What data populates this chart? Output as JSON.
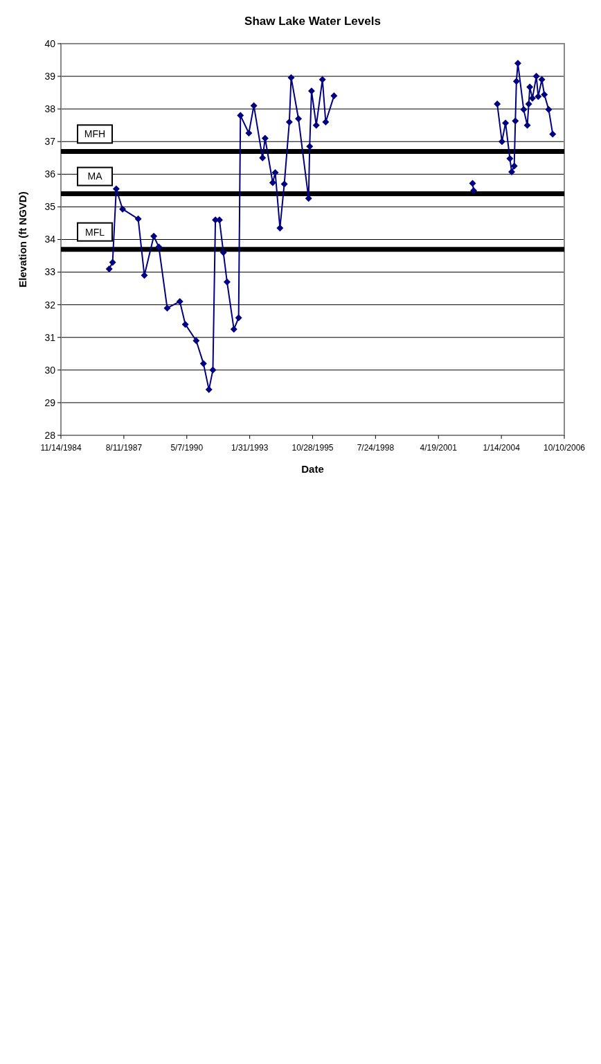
{
  "chart_data": {
    "type": "line",
    "title": "Shaw Lake Water Levels",
    "xlabel": "Date",
    "ylabel": "Elevation (ft NGVD)",
    "x": [
      "1986-12-21",
      "1987-02-13",
      "1987-04-12",
      "1987-07-22",
      "1988-03-26",
      "1988-07-02",
      "1988-11-29",
      "1989-02-17",
      "1989-06-30",
      "1990-01-17",
      "1990-04-14",
      "1990-10-04",
      "1991-01-27",
      "1991-04-24",
      "1991-06-26",
      "1991-08-05",
      "1991-10-08",
      "1991-12-10",
      "1992-02-06",
      "1992-05-25",
      "1992-08-08",
      "1992-09-06",
      "1993-01-17",
      "1993-04-07",
      "1993-08-23",
      "1993-10-03",
      "1994-02-01",
      "1994-03-13",
      "1994-05-27",
      "1994-08-04",
      "1994-10-23",
      "1994-11-21",
      "1995-03-17",
      "1995-08-25",
      "1995-09-11",
      "1995-10-11",
      "1995-12-25",
      "1996-04-01",
      "1996-05-23",
      "1996-10-02",
      "1999-06-01",
      "2002-10-13",
      "2002-10-30",
      "2003-06-01",
      "2003-11-09",
      "2004-01-23",
      "2004-03-20",
      "2004-05-28",
      "2004-06-26",
      "2004-08-05",
      "2004-08-23",
      "2004-09-09",
      "2004-10-02",
      "2005-01-02",
      "2005-03-01",
      "2005-03-24",
      "2005-04-10",
      "2005-05-21",
      "2005-07-23",
      "2005-08-21",
      "2005-10-18",
      "2005-11-27",
      "2006-02-04",
      "2006-04-09"
    ],
    "series": [
      {
        "color": "#000080",
        "values": [
          33.1,
          33.3,
          35.55,
          34.93,
          34.63,
          32.9,
          34.1,
          33.77,
          31.9,
          32.1,
          31.4,
          30.9,
          30.2,
          29.4,
          30.0,
          34.6,
          34.6,
          33.6,
          32.7,
          31.25,
          31.6,
          37.8,
          37.26,
          38.1,
          36.5,
          37.1,
          35.74,
          36.05,
          34.35,
          35.7,
          37.6,
          38.96,
          37.7,
          35.26,
          36.85,
          38.55,
          37.5,
          38.9,
          37.6,
          38.4,
          null,
          35.72,
          35.5,
          null,
          38.15,
          37.0,
          37.57,
          36.48,
          36.07,
          36.25,
          37.63,
          38.85,
          39.4,
          37.98,
          37.5,
          38.15,
          38.67,
          38.33,
          39.0,
          38.38,
          38.9,
          38.44,
          37.98,
          37.23
        ]
      }
    ],
    "marker": "diamond",
    "grid": "y",
    "xlim": [
      "1984-11-14",
      "2006-10-10"
    ],
    "xticks": [
      {
        "value": "1984-11-14",
        "label": "11/14/1984"
      },
      {
        "value": "1987-08-11",
        "label": "8/11/1987"
      },
      {
        "value": "1990-05-07",
        "label": "5/7/1990"
      },
      {
        "value": "1993-01-31",
        "label": "1/31/1993"
      },
      {
        "value": "1995-10-28",
        "label": "10/28/1995"
      },
      {
        "value": "1998-07-24",
        "label": "7/24/1998"
      },
      {
        "value": "2001-04-19",
        "label": "4/19/2001"
      },
      {
        "value": "2004-01-14",
        "label": "1/14/2004"
      },
      {
        "value": "2006-10-10",
        "label": "10/10/2006"
      }
    ],
    "ylim": [
      28,
      40
    ],
    "yticks": [
      28,
      29,
      30,
      31,
      32,
      33,
      34,
      35,
      36,
      37,
      38,
      39,
      40
    ],
    "ref_lines": [
      {
        "axis": "y",
        "value": 36.7,
        "label": "MFH",
        "color": "#000000"
      },
      {
        "axis": "y",
        "value": 35.4,
        "label": "MA",
        "color": "#000000"
      },
      {
        "axis": "y",
        "value": 33.7,
        "label": "MFL",
        "color": "#000000"
      }
    ]
  }
}
